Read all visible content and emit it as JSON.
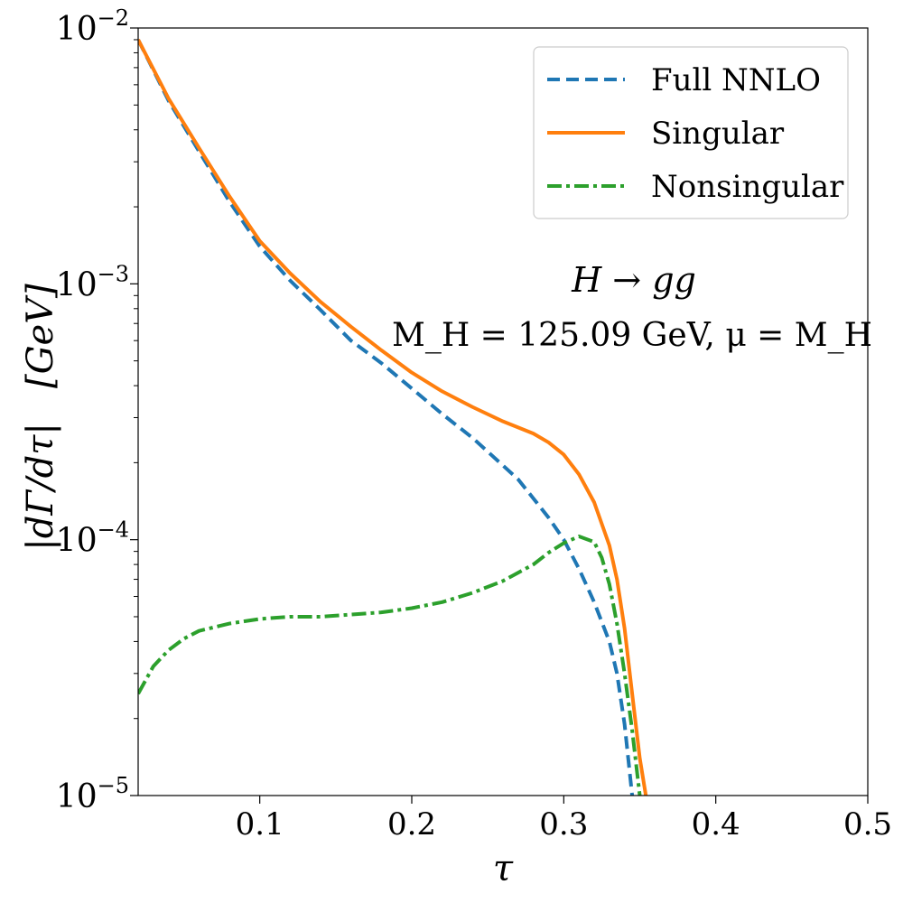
{
  "chart_data": {
    "type": "line",
    "xlabel": "τ",
    "ylabel": "|dΓ/dτ|   [GeV]",
    "xlim": [
      0.02,
      0.5
    ],
    "ylim": [
      1e-05,
      0.01
    ],
    "yscale": "log",
    "grid": false,
    "legend_position": "top-right",
    "xticks": [
      {
        "value": 0.1,
        "label": "0.1"
      },
      {
        "value": 0.2,
        "label": "0.2"
      },
      {
        "value": 0.3,
        "label": "0.3"
      },
      {
        "value": 0.4,
        "label": "0.4"
      },
      {
        "value": 0.5,
        "label": "0.5"
      }
    ],
    "yticks": [
      {
        "value": 1e-05,
        "base": "10",
        "exp": "−5"
      },
      {
        "value": 0.0001,
        "base": "10",
        "exp": "−4"
      },
      {
        "value": 0.001,
        "base": "10",
        "exp": "−3"
      },
      {
        "value": 0.01,
        "base": "10",
        "exp": "−2"
      }
    ],
    "annotations": {
      "process": "H → gg",
      "params": "M_H = 125.09 GeV,  μ = M_H"
    },
    "series": [
      {
        "name": "Full NNLO",
        "color": "#1f77b4",
        "style": "dashed",
        "x": [
          0.02,
          0.04,
          0.06,
          0.08,
          0.1,
          0.12,
          0.14,
          0.16,
          0.18,
          0.2,
          0.22,
          0.24,
          0.26,
          0.27,
          0.28,
          0.29,
          0.3,
          0.31,
          0.32,
          0.33,
          0.335,
          0.34,
          0.345
        ],
        "y": [
          0.009,
          0.0052,
          0.0033,
          0.0021,
          0.0014,
          0.00103,
          0.00079,
          0.0006,
          0.00049,
          0.00039,
          0.00031,
          0.00025,
          0.000195,
          0.000172,
          0.000145,
          0.000122,
          0.0001,
          7.7e-05,
          5.7e-05,
          4e-05,
          3e-05,
          1.9e-05,
          1e-05
        ]
      },
      {
        "name": "Singular",
        "color": "#ff7f0e",
        "style": "solid",
        "x": [
          0.02,
          0.04,
          0.06,
          0.08,
          0.1,
          0.12,
          0.14,
          0.16,
          0.18,
          0.2,
          0.22,
          0.24,
          0.26,
          0.28,
          0.29,
          0.3,
          0.31,
          0.32,
          0.33,
          0.335,
          0.34,
          0.345,
          0.35,
          0.354
        ],
        "y": [
          0.009,
          0.0053,
          0.0034,
          0.0022,
          0.00147,
          0.0011,
          0.00085,
          0.00068,
          0.00055,
          0.00045,
          0.00038,
          0.00033,
          0.00029,
          0.00026,
          0.00024,
          0.000215,
          0.00018,
          0.00014,
          9.5e-05,
          7e-05,
          4.5e-05,
          2.5e-05,
          1.4e-05,
          1e-05
        ]
      },
      {
        "name": "Nonsingular",
        "color": "#2ca02c",
        "style": "dashdot",
        "x": [
          0.02,
          0.03,
          0.04,
          0.05,
          0.06,
          0.08,
          0.1,
          0.12,
          0.14,
          0.16,
          0.18,
          0.2,
          0.22,
          0.24,
          0.26,
          0.28,
          0.29,
          0.3,
          0.31,
          0.32,
          0.325,
          0.33,
          0.335,
          0.34,
          0.345,
          0.35
        ],
        "y": [
          2.5e-05,
          3.2e-05,
          3.7e-05,
          4.1e-05,
          4.4e-05,
          4.7e-05,
          4.9e-05,
          5e-05,
          5e-05,
          5.1e-05,
          5.2e-05,
          5.4e-05,
          5.7e-05,
          6.2e-05,
          6.9e-05,
          8e-05,
          8.9e-05,
          9.7e-05,
          0.000103,
          9.8e-05,
          8.5e-05,
          6.7e-05,
          4.7e-05,
          3e-05,
          1.8e-05,
          1e-05
        ]
      }
    ]
  }
}
